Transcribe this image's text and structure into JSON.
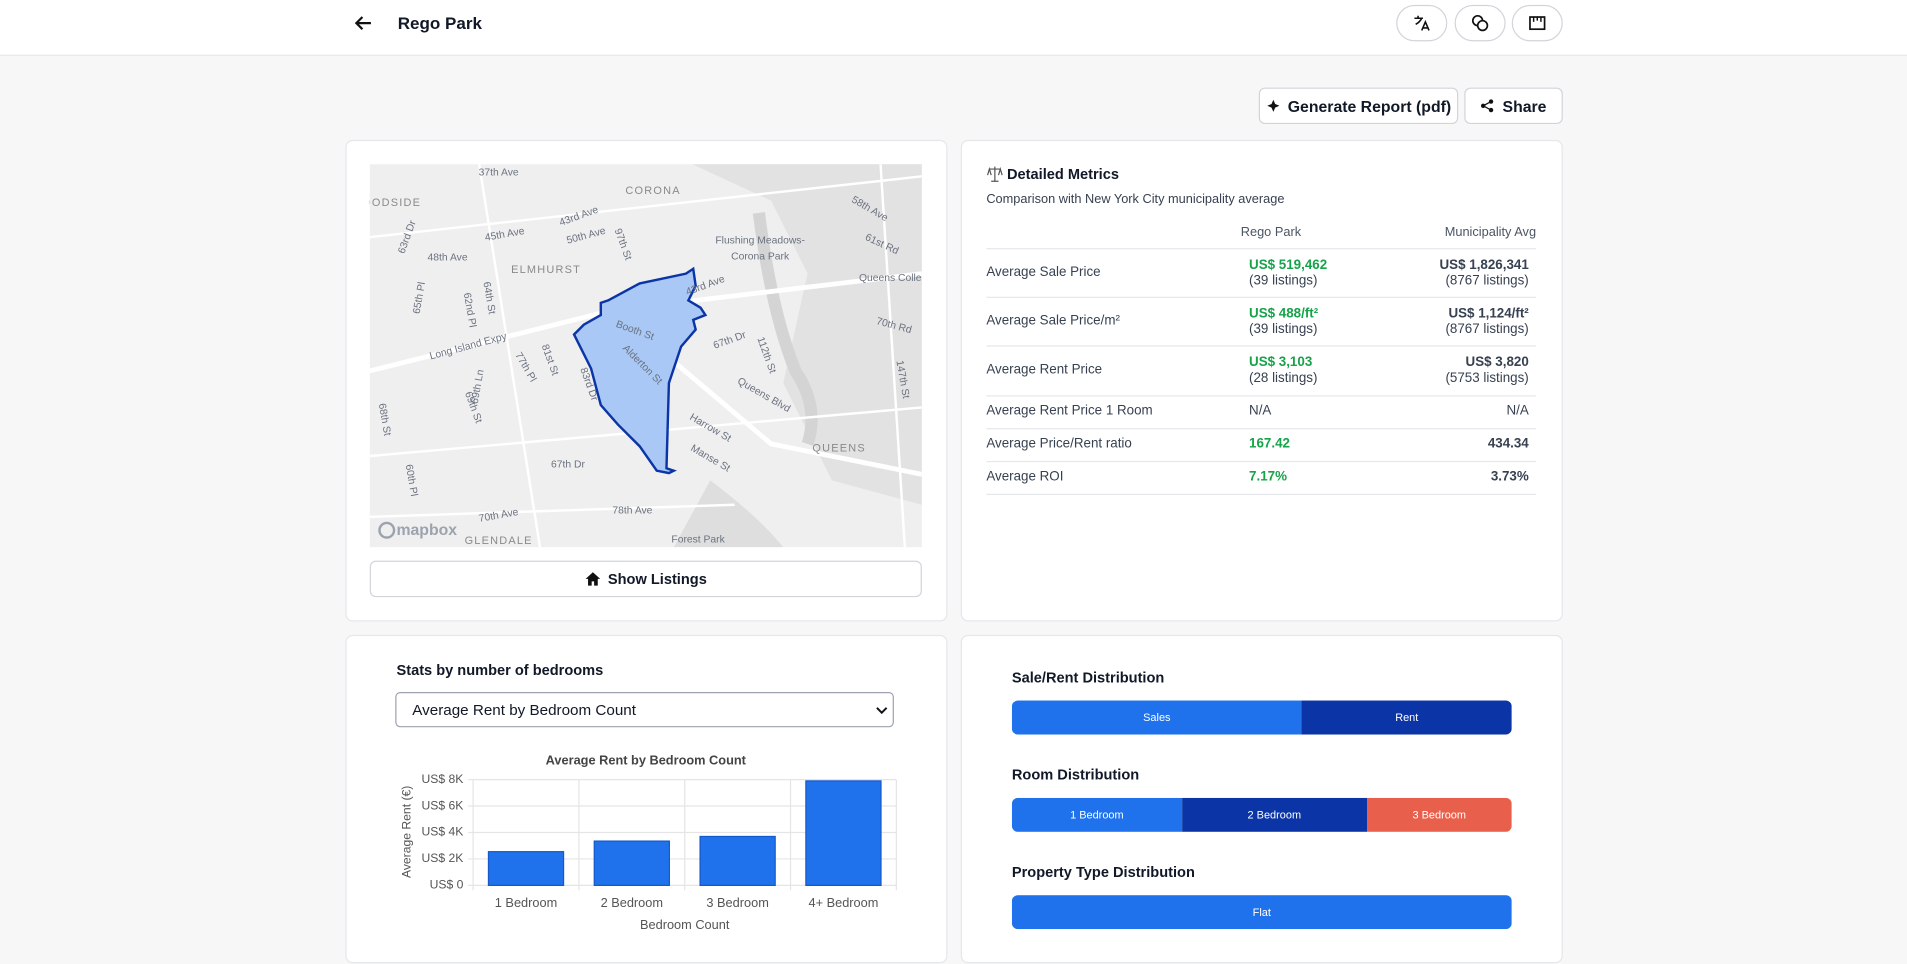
{
  "header": {
    "title": "Rego Park"
  },
  "actions": {
    "generate_report": "Generate Report (pdf)",
    "share": "Share"
  },
  "map": {
    "labels": [
      "37th Ave",
      "CORONA",
      "OODSIDE",
      "43rd Ave",
      "45th Ave",
      "50th Ave",
      "97th St",
      "Flushing Meadows-",
      "Corona Park",
      "58th Ave",
      "61st Rd",
      "63rd Dr",
      "48th Ave",
      "ELMHURST",
      "Queens Colle",
      "65th Pl",
      "62nd Pl",
      "64th St",
      "43rd Ave",
      "Booth St",
      "67th Dr",
      "70th Rd",
      "Long Island Expy",
      "Alderton St",
      "81st St",
      "77th Pl",
      "112th St",
      "147th St",
      "69th Ln",
      "83rd Dr",
      "Queens Blvd",
      "69th St",
      "Harrow St",
      "Manse St",
      "68th St",
      "QUEENS",
      "67th Dr",
      "60th Pl",
      "78th Ave",
      "70th Ave",
      "Forest Park",
      "GLENDALE"
    ],
    "attribution": "mapbox",
    "show_listings": "Show Listings"
  },
  "metrics": {
    "title": "Detailed Metrics",
    "subtitle": "Comparison with New York City municipality average",
    "columns": [
      "Rego Park",
      "Municipality Avg"
    ],
    "rows": [
      {
        "label": "Average Sale Price",
        "local": "US$ 519,462",
        "local_note": "(39 listings)",
        "avg": "US$ 1,826,341",
        "avg_note": "(8767 listings)"
      },
      {
        "label": "Average Sale Price/m²",
        "local": "US$ 488/ft²",
        "local_note": "(39 listings)",
        "avg": "US$ 1,124/ft²",
        "avg_note": "(8767 listings)"
      },
      {
        "label": "Average Rent Price",
        "local": "US$ 3,103",
        "local_note": "(28 listings)",
        "avg": "US$ 3,820",
        "avg_note": "(5753 listings)"
      },
      {
        "label": "Average Rent Price 1 Room",
        "local": "N/A",
        "avg": "N/A"
      },
      {
        "label": "Average Price/Rent ratio",
        "local": "167.42",
        "avg": "434.34",
        "info": true
      },
      {
        "label": "Average ROI",
        "local": "7.17%",
        "avg": "3.73%",
        "info": true
      }
    ]
  },
  "bedrooms": {
    "title": "Stats by number of bedrooms",
    "select": "Average Rent by Bedroom Count"
  },
  "chart_data": {
    "type": "bar",
    "title": "Average Rent by Bedroom Count",
    "x_label": "Bedroom Count",
    "y_label": "Average Rent (€)",
    "categories": [
      "1 Bedroom",
      "2 Bedroom",
      "3 Bedroom",
      "4+ Bedroom"
    ],
    "values": [
      2550,
      3350,
      3700,
      7900
    ],
    "color": "#1f72eb",
    "ylim": [
      0,
      8000
    ],
    "yticks": [
      {
        "value": 0,
        "label": "US$ 0"
      },
      {
        "value": 2000,
        "label": "US$ 2K"
      },
      {
        "value": 4000,
        "label": "US$ 4K"
      },
      {
        "value": 6000,
        "label": "US$ 6K"
      },
      {
        "value": 8000,
        "label": "US$ 8K"
      }
    ],
    "grid": true
  },
  "distributions": [
    {
      "title": "Sale/Rent Distribution",
      "segments": [
        {
          "name": "Sales",
          "value": 58,
          "color": "#1f72eb"
        },
        {
          "name": "Rent",
          "value": 42,
          "color": "#0b35a6"
        }
      ]
    },
    {
      "title": "Room Distribution",
      "segments": [
        {
          "name": "1 Bedroom",
          "value": 34,
          "color": "#1f72eb"
        },
        {
          "name": "2 Bedroom",
          "value": 37,
          "color": "#0b35a6"
        },
        {
          "name": "3 Bedroom",
          "value": 29,
          "color": "#e8604c"
        }
      ]
    },
    {
      "title": "Property Type Distribution",
      "segments": [
        {
          "name": "Flat",
          "value": 100,
          "color": "#1f72eb"
        }
      ]
    }
  ]
}
